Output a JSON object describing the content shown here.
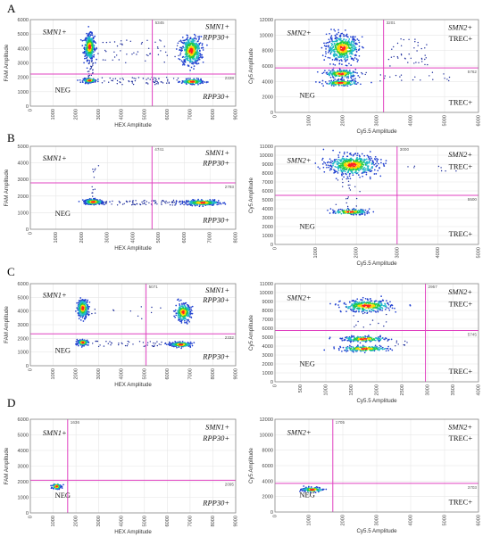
{
  "figure": {
    "panel_letters": [
      "A",
      "B",
      "C",
      "D"
    ]
  },
  "colors": {
    "threshold_line": "#e040c0",
    "cluster_core": "#ff2020",
    "cluster_mid1": "#ffd700",
    "cluster_mid2": "#22cc44",
    "cluster_edge": "#2040d0",
    "rain": "#1a2a9a",
    "grid": "#e6e6e6",
    "frame": "#888888"
  },
  "chart_data": [
    {
      "id": "A-left",
      "type": "scatter",
      "xlabel": "HEX Amplitude",
      "ylabel": "FAM Amplitude",
      "xlim": [
        0,
        9000
      ],
      "ylim": [
        0,
        6000
      ],
      "xticks": [
        0,
        1000,
        2000,
        3000,
        4000,
        5000,
        6000,
        7000,
        8000,
        9000
      ],
      "yticks": [
        0,
        1000,
        2000,
        3000,
        4000,
        5000,
        6000
      ],
      "threshold_x": 5345,
      "threshold_y": 2228,
      "threshold_x_label": "5345",
      "threshold_y_label": "2228",
      "quadrant_labels": [
        {
          "text": "SMN1+",
          "italic": true,
          "pos": "top-left"
        },
        {
          "text": "SMN1+",
          "italic": true,
          "pos": "top-right"
        },
        {
          "text": "RPP30+",
          "italic": true,
          "pos": "top-right-2"
        },
        {
          "text": "NEG",
          "italic": false,
          "pos": "bottom-left"
        },
        {
          "text": "RPP30+",
          "italic": true,
          "pos": "bottom-right"
        }
      ],
      "clusters": [
        {
          "cx": 2600,
          "cy": 4100,
          "sx": 110,
          "sy": 430,
          "n": 420
        },
        {
          "cx": 7050,
          "cy": 3850,
          "sx": 220,
          "sy": 480,
          "n": 480
        },
        {
          "cx": 2600,
          "cy": 1780,
          "sx": 140,
          "sy": 70,
          "n": 160
        },
        {
          "cx": 7100,
          "cy": 1700,
          "sx": 230,
          "sy": 80,
          "n": 200
        }
      ],
      "rain": [
        {
          "x": [
            2800,
            6800
          ],
          "y": [
            1500,
            2000
          ],
          "n": 70
        },
        {
          "x": [
            2800,
            6800
          ],
          "y": [
            3000,
            4600
          ],
          "n": 55
        },
        {
          "x": [
            2500,
            2800
          ],
          "y": [
            2000,
            3200
          ],
          "n": 25
        }
      ]
    },
    {
      "id": "A-right",
      "type": "scatter",
      "xlabel": "Cy5.5 Amplitude",
      "ylabel": "Cy5 Amplitude",
      "xlim": [
        0,
        6000
      ],
      "ylim": [
        0,
        12000
      ],
      "xticks": [
        0,
        1000,
        2000,
        3000,
        4000,
        5000,
        6000
      ],
      "yticks": [
        0,
        2000,
        4000,
        6000,
        8000,
        10000,
        12000
      ],
      "threshold_x": 3201,
      "threshold_y": 5762,
      "threshold_x_label": "3201",
      "threshold_y_label": "5762",
      "quadrant_labels": [
        {
          "text": "SMN2+",
          "italic": true,
          "pos": "top-left"
        },
        {
          "text": "SMN2+",
          "italic": true,
          "pos": "top-right"
        },
        {
          "text": "TREC+",
          "italic": false,
          "pos": "top-right-2"
        },
        {
          "text": "NEG",
          "italic": false,
          "pos": "bottom-left"
        },
        {
          "text": "TREC+",
          "italic": false,
          "pos": "bottom-right"
        }
      ],
      "clusters": [
        {
          "cx": 2000,
          "cy": 8300,
          "sx": 230,
          "sy": 850,
          "n": 520
        },
        {
          "cx": 1950,
          "cy": 5000,
          "sx": 230,
          "sy": 260,
          "n": 180
        },
        {
          "cx": 1950,
          "cy": 3800,
          "sx": 250,
          "sy": 180,
          "n": 160
        }
      ],
      "rain": [
        {
          "x": [
            3300,
            4500
          ],
          "y": [
            6000,
            9500
          ],
          "n": 40
        },
        {
          "x": [
            2300,
            5200
          ],
          "y": [
            4000,
            5200
          ],
          "n": 25
        }
      ]
    },
    {
      "id": "B-left",
      "type": "scatter",
      "xlabel": "HEX Amplitude",
      "ylabel": "FAM Amplitude",
      "xlim": [
        0,
        8000
      ],
      "ylim": [
        0,
        5000
      ],
      "xticks": [
        0,
        1000,
        2000,
        3000,
        4000,
        5000,
        6000,
        7000,
        8000
      ],
      "yticks": [
        0,
        1000,
        2000,
        3000,
        4000,
        5000
      ],
      "threshold_x": 4741,
      "threshold_y": 2793,
      "threshold_x_label": "4741",
      "threshold_y_label": "2793",
      "quadrant_labels": [
        {
          "text": "SMN1+",
          "italic": true,
          "pos": "top-left"
        },
        {
          "text": "SMN1+",
          "italic": true,
          "pos": "top-right"
        },
        {
          "text": "RPP30+",
          "italic": true,
          "pos": "top-right-2"
        },
        {
          "text": "NEG",
          "italic": false,
          "pos": "bottom-left"
        },
        {
          "text": "RPP30+",
          "italic": true,
          "pos": "bottom-right"
        }
      ],
      "clusters": [
        {
          "cx": 2450,
          "cy": 1650,
          "sx": 180,
          "sy": 80,
          "n": 260
        },
        {
          "cx": 6700,
          "cy": 1600,
          "sx": 330,
          "sy": 75,
          "n": 320
        }
      ],
      "rain": [
        {
          "x": [
            2700,
            6300
          ],
          "y": [
            1450,
            1750
          ],
          "n": 90
        },
        {
          "x": [
            2400,
            2700
          ],
          "y": [
            1800,
            3900
          ],
          "n": 12
        }
      ]
    },
    {
      "id": "B-right",
      "type": "scatter",
      "xlabel": "Cy5.5 Amplitude",
      "ylabel": "Cy5 Amplitude",
      "xlim": [
        0,
        5000
      ],
      "ylim": [
        0,
        11000
      ],
      "xticks": [
        0,
        1000,
        2000,
        3000,
        4000,
        5000
      ],
      "yticks": [
        0,
        1000,
        2000,
        3000,
        4000,
        5000,
        6000,
        7000,
        8000,
        9000,
        10000,
        11000
      ],
      "threshold_x": 3000,
      "threshold_y": 5500,
      "threshold_x_label": "3000",
      "threshold_y_label": "5500",
      "quadrant_labels": [
        {
          "text": "SMN2+",
          "italic": true,
          "pos": "top-left"
        },
        {
          "text": "SMN2+",
          "italic": true,
          "pos": "top-right"
        },
        {
          "text": "TREC+",
          "italic": false,
          "pos": "top-right-2"
        },
        {
          "text": "NEG",
          "italic": false,
          "pos": "bottom-left"
        },
        {
          "text": "TREC+",
          "italic": false,
          "pos": "bottom-right"
        }
      ],
      "clusters": [
        {
          "cx": 1900,
          "cy": 8900,
          "sx": 300,
          "sy": 550,
          "n": 560
        },
        {
          "cx": 1850,
          "cy": 3650,
          "sx": 230,
          "sy": 150,
          "n": 150
        }
      ],
      "rain": [
        {
          "x": [
            1500,
            2100
          ],
          "y": [
            4200,
            7800
          ],
          "n": 20
        },
        {
          "x": [
            3200,
            4500
          ],
          "y": [
            8200,
            8800
          ],
          "n": 8
        }
      ]
    },
    {
      "id": "C-left",
      "type": "scatter",
      "xlabel": "HEX Amplitude",
      "ylabel": "FAM Amplitude",
      "xlim": [
        0,
        9000
      ],
      "ylim": [
        0,
        6000
      ],
      "xticks": [
        0,
        1000,
        2000,
        3000,
        4000,
        5000,
        6000,
        7000,
        8000,
        9000
      ],
      "yticks": [
        0,
        1000,
        2000,
        3000,
        4000,
        5000,
        6000
      ],
      "threshold_x": 5071,
      "threshold_y": 2332,
      "threshold_x_label": "5071",
      "threshold_y_label": "2332",
      "quadrant_labels": [
        {
          "text": "SMN1+",
          "italic": true,
          "pos": "top-left"
        },
        {
          "text": "SMN1+",
          "italic": true,
          "pos": "top-right"
        },
        {
          "text": "RPP30+",
          "italic": true,
          "pos": "top-right-2"
        },
        {
          "text": "NEG",
          "italic": false,
          "pos": "bottom-left"
        },
        {
          "text": "RPP30+",
          "italic": true,
          "pos": "bottom-right"
        }
      ],
      "clusters": [
        {
          "cx": 2300,
          "cy": 4200,
          "sx": 120,
          "sy": 320,
          "n": 320
        },
        {
          "cx": 6700,
          "cy": 3900,
          "sx": 170,
          "sy": 320,
          "n": 300
        },
        {
          "cx": 2300,
          "cy": 1700,
          "sx": 120,
          "sy": 100,
          "n": 170
        },
        {
          "cx": 6600,
          "cy": 1550,
          "sx": 230,
          "sy": 80,
          "n": 220
        }
      ],
      "rain": [
        {
          "x": [
            2600,
            6200
          ],
          "y": [
            1400,
            1800
          ],
          "n": 45
        },
        {
          "x": [
            2600,
            6200
          ],
          "y": [
            3400,
            4400
          ],
          "n": 12
        }
      ]
    },
    {
      "id": "C-right",
      "type": "scatter",
      "xlabel": "Cy5.5 Amplitude",
      "ylabel": "Cy5 Amplitude",
      "xlim": [
        0,
        4000
      ],
      "ylim": [
        0,
        11000
      ],
      "xticks": [
        0,
        500,
        1000,
        1500,
        2000,
        2500,
        3000,
        3500,
        4000
      ],
      "yticks": [
        0,
        1000,
        2000,
        3000,
        4000,
        5000,
        6000,
        7000,
        8000,
        9000,
        10000,
        11000
      ],
      "threshold_x": 2957,
      "threshold_y": 5745,
      "threshold_x_label": "2957",
      "threshold_y_label": "5745",
      "quadrant_labels": [
        {
          "text": "SMN2+",
          "italic": true,
          "pos": "top-left"
        },
        {
          "text": "SMN2+",
          "italic": true,
          "pos": "top-right"
        },
        {
          "text": "TREC+",
          "italic": false,
          "pos": "top-right-2"
        },
        {
          "text": "NEG",
          "italic": false,
          "pos": "bottom-left"
        },
        {
          "text": "TREC+",
          "italic": false,
          "pos": "bottom-right"
        }
      ],
      "clusters": [
        {
          "cx": 1800,
          "cy": 8500,
          "sx": 240,
          "sy": 330,
          "n": 360
        },
        {
          "cx": 1750,
          "cy": 4800,
          "sx": 220,
          "sy": 150,
          "n": 200
        },
        {
          "cx": 1750,
          "cy": 3700,
          "sx": 250,
          "sy": 150,
          "n": 200
        }
      ],
      "rain": [
        {
          "x": [
            1500,
            2200
          ],
          "y": [
            5300,
            7800
          ],
          "n": 14
        },
        {
          "x": [
            2200,
            2900
          ],
          "y": [
            3800,
            4600
          ],
          "n": 10
        }
      ]
    },
    {
      "id": "D-left",
      "type": "scatter",
      "xlabel": "HEX Amplitude",
      "ylabel": "FAM Amplitude",
      "xlim": [
        0,
        9000
      ],
      "ylim": [
        0,
        6000
      ],
      "xticks": [
        0,
        1000,
        2000,
        3000,
        4000,
        5000,
        6000,
        7000,
        8000,
        9000
      ],
      "yticks": [
        0,
        1000,
        2000,
        3000,
        4000,
        5000,
        6000
      ],
      "threshold_x": 1636,
      "threshold_y": 2095,
      "threshold_x_label": "1636",
      "threshold_y_label": "2095",
      "quadrant_labels": [
        {
          "text": "SMN1+",
          "italic": true,
          "pos": "top-left"
        },
        {
          "text": "SMN1+",
          "italic": true,
          "pos": "top-right"
        },
        {
          "text": "RPP30+",
          "italic": true,
          "pos": "top-right-2"
        },
        {
          "text": "NEG",
          "italic": false,
          "pos": "bottom-left"
        },
        {
          "text": "RPP30+",
          "italic": true,
          "pos": "bottom-right"
        }
      ],
      "clusters": [
        {
          "cx": 1150,
          "cy": 1700,
          "sx": 90,
          "sy": 90,
          "n": 140
        }
      ],
      "rain": []
    },
    {
      "id": "D-right",
      "type": "scatter",
      "xlabel": "Cy5.5 Amplitude",
      "ylabel": "Cy5 Amplitude",
      "xlim": [
        0,
        6000
      ],
      "ylim": [
        0,
        12000
      ],
      "xticks": [
        0,
        1000,
        2000,
        3000,
        4000,
        5000,
        6000
      ],
      "yticks": [
        0,
        2000,
        4000,
        6000,
        8000,
        10000,
        12000
      ],
      "threshold_x": 1705,
      "threshold_y": 3703,
      "threshold_x_label": "1705",
      "threshold_y_label": "3703",
      "quadrant_labels": [
        {
          "text": "SMN2+",
          "italic": true,
          "pos": "top-left"
        },
        {
          "text": "SMN2+",
          "italic": true,
          "pos": "top-right"
        },
        {
          "text": "TREC+",
          "italic": false,
          "pos": "top-right-2"
        },
        {
          "text": "NEG",
          "italic": false,
          "pos": "bottom-left"
        },
        {
          "text": "TREC+",
          "italic": false,
          "pos": "bottom-right"
        }
      ],
      "clusters": [
        {
          "cx": 1100,
          "cy": 2900,
          "sx": 160,
          "sy": 150,
          "n": 130
        }
      ],
      "rain": []
    }
  ]
}
